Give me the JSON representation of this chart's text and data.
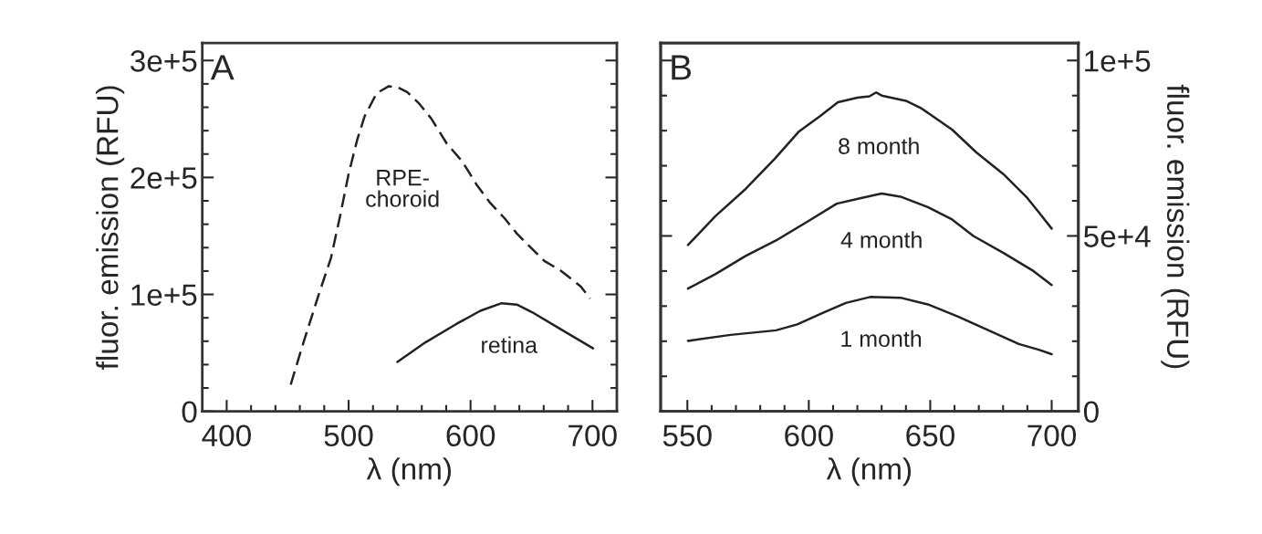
{
  "chart_data": [
    {
      "type": "line",
      "title": "A",
      "xlabel": "λ (nm)",
      "ylabel": "fluor. emission (RFU)",
      "xlim": [
        380,
        720
      ],
      "ylim": [
        0,
        315000
      ],
      "xticks": [
        400,
        {
          "value": 420,
          "label": null
        },
        {
          "value": 440,
          "label": null
        },
        {
          "value": 460,
          "label": null
        },
        {
          "value": 480,
          "label": null
        },
        500,
        {
          "value": 520,
          "label": null
        },
        {
          "value": 540,
          "label": null
        },
        {
          "value": 560,
          "label": null
        },
        {
          "value": 580,
          "label": null
        },
        600,
        {
          "value": 620,
          "label": null
        },
        {
          "value": 640,
          "label": null
        },
        {
          "value": 660,
          "label": null
        },
        {
          "value": 680,
          "label": null
        },
        700
      ],
      "yticks": [
        0,
        {
          "value": 20000,
          "label": null
        },
        {
          "value": 40000,
          "label": null
        },
        {
          "value": 60000,
          "label": null
        },
        {
          "value": 80000,
          "label": null
        },
        {
          "value": 100000,
          "label": "1e+5"
        },
        {
          "value": 120000,
          "label": null
        },
        {
          "value": 140000,
          "label": null
        },
        {
          "value": 160000,
          "label": null
        },
        {
          "value": 180000,
          "label": null
        },
        {
          "value": 200000,
          "label": "2e+5"
        },
        {
          "value": 220000,
          "label": null
        },
        {
          "value": 240000,
          "label": null
        },
        {
          "value": 260000,
          "label": null
        },
        {
          "value": 280000,
          "label": null
        },
        {
          "value": 300000,
          "label": "3e+5"
        }
      ],
      "series": [
        {
          "name": "RPE-\nchoroid",
          "color": "#222222",
          "line_style": "dashed",
          "x": [
            452.5,
            463,
            475.5,
            485.5,
            493,
            500,
            507,
            513,
            523,
            533,
            540.5,
            548,
            558,
            568,
            580.5,
            593,
            605.5,
            615.5,
            628,
            638,
            648,
            660.5,
            673,
            683,
            690.5,
            698
          ],
          "values": [
            22900,
            59000,
            100000,
            131000,
            167000,
            203000,
            232000,
            252000,
            272000,
            278000,
            277000,
            273000,
            263000,
            250000,
            229000,
            214000,
            193000,
            179000,
            165000,
            152000,
            141500,
            128600,
            121000,
            113000,
            106700,
            96400
          ]
        },
        {
          "name": "retina",
          "color": "#222222",
          "line_style": "solid",
          "x": [
            540,
            563,
            588,
            608,
            625.5,
            638,
            650.5,
            675.5,
            700.5
          ],
          "values": [
            42300,
            59000,
            74500,
            86000,
            92500,
            91300,
            84800,
            69300,
            53900
          ]
        }
      ]
    },
    {
      "type": "line",
      "title": "B",
      "xlabel": "λ (nm)",
      "y2label": "fluor. emission (RFU)",
      "xlim": [
        539,
        711
      ],
      "y2lim": [
        0,
        105000
      ],
      "xticks": [
        550,
        {
          "value": 560,
          "label": null
        },
        {
          "value": 570,
          "label": null
        },
        {
          "value": 580,
          "label": null
        },
        {
          "value": 590,
          "label": null
        },
        600,
        {
          "value": 610,
          "label": null
        },
        {
          "value": 620,
          "label": null
        },
        {
          "value": 630,
          "label": null
        },
        {
          "value": 640,
          "label": null
        },
        650,
        {
          "value": 660,
          "label": null
        },
        {
          "value": 670,
          "label": null
        },
        {
          "value": 680,
          "label": null
        },
        {
          "value": 690,
          "label": null
        },
        700
      ],
      "y2ticks": [
        0,
        {
          "value": 10000,
          "label": null
        },
        {
          "value": 20000,
          "label": null
        },
        {
          "value": 30000,
          "label": null
        },
        {
          "value": 40000,
          "label": null
        },
        {
          "value": 50000,
          "label": "5e+4"
        },
        {
          "value": 60000,
          "label": null
        },
        {
          "value": 70000,
          "label": null
        },
        {
          "value": 80000,
          "label": null
        },
        {
          "value": 90000,
          "label": null
        },
        {
          "value": 100000,
          "label": "1e+5"
        }
      ],
      "series": [
        {
          "name": "8 month",
          "color": "#222222",
          "line_style": "solid",
          "axis": "y2",
          "x": [
            550.25,
            561.5,
            574,
            586,
            596,
            604.75,
            612,
            620,
            625,
            627.75,
            630,
            640,
            646.5,
            659,
            669,
            680,
            690,
            695,
            700
          ],
          "values": [
            47400,
            55600,
            63400,
            72000,
            79800,
            84200,
            88100,
            89400,
            89800,
            90900,
            90000,
            88500,
            86300,
            80300,
            73800,
            67700,
            60800,
            56500,
            52100
          ]
        },
        {
          "name": "4 month",
          "color": "#222222",
          "line_style": "solid",
          "axis": "y2",
          "x": [
            550.25,
            561.5,
            574,
            586.5,
            599,
            611.5,
            621.5,
            630,
            637.75,
            649,
            659,
            667.75,
            680,
            692.5,
            700
          ],
          "values": [
            35000,
            39100,
            44300,
            48700,
            53900,
            59200,
            60800,
            62100,
            61200,
            58200,
            54700,
            50000,
            45200,
            40000,
            36000
          ]
        },
        {
          "name": "1 month",
          "color": "#222222",
          "line_style": "solid",
          "axis": "y2",
          "x": [
            550.25,
            567.75,
            586.5,
            595.25,
            605.25,
            615.25,
            625.25,
            637.75,
            649,
            661.5,
            674,
            686.5,
            695,
            700
          ],
          "values": [
            20100,
            21800,
            23100,
            24800,
            27900,
            30900,
            32600,
            32400,
            30500,
            27000,
            23100,
            19200,
            17500,
            16300
          ]
        }
      ]
    }
  ]
}
